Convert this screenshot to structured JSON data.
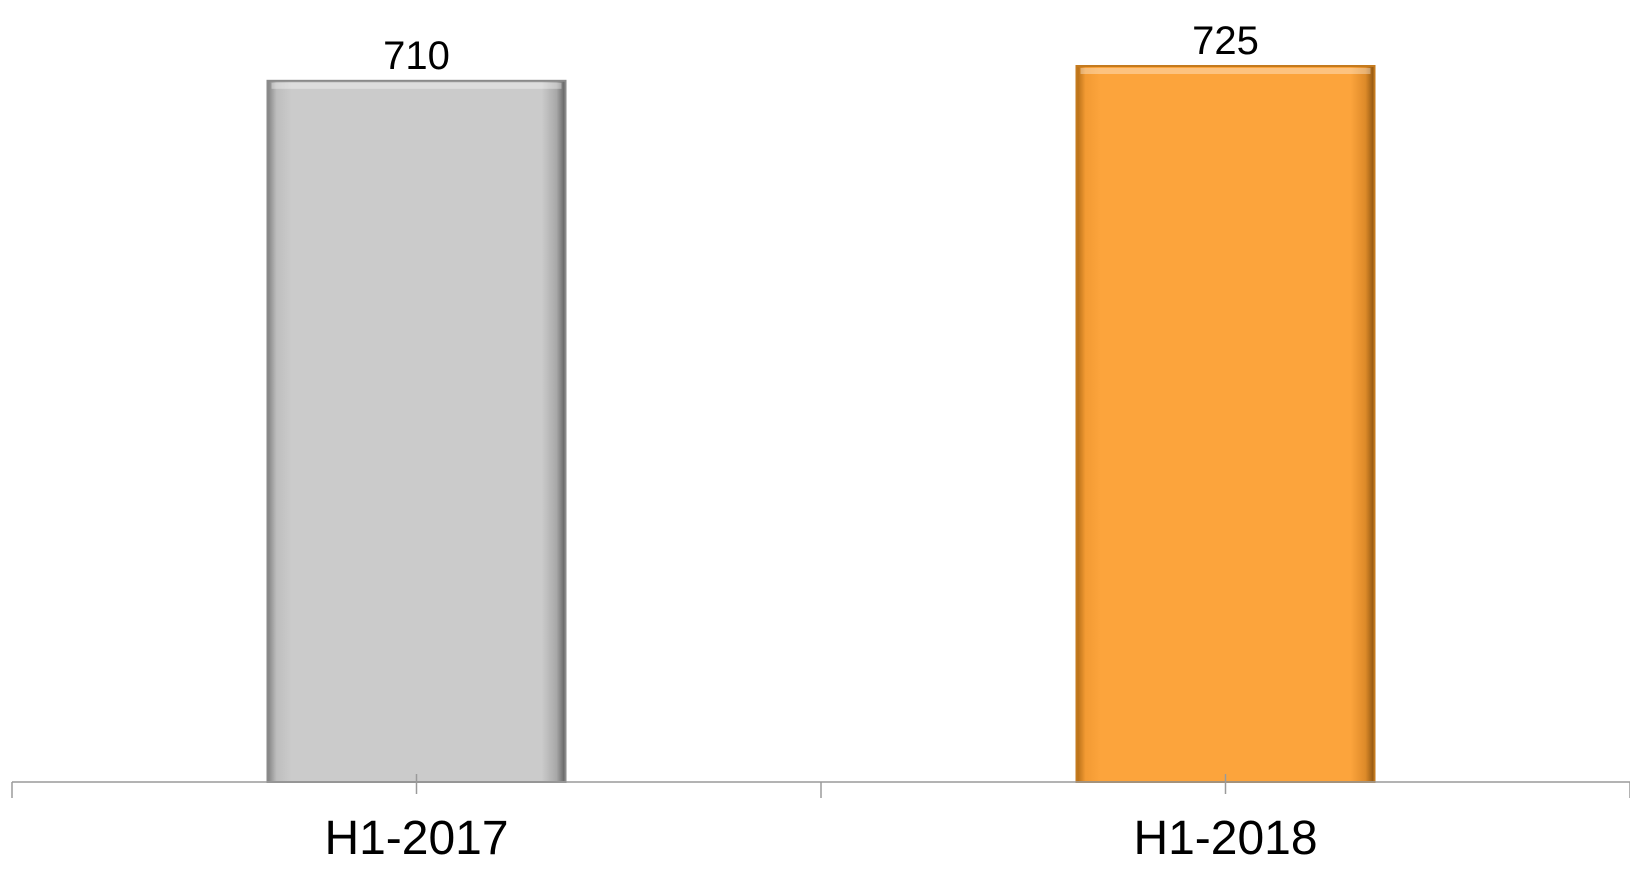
{
  "chart_data": {
    "type": "bar",
    "categories": [
      "H1-2017",
      "H1-2018"
    ],
    "values": [
      710,
      725
    ],
    "data_labels": [
      "710",
      "725"
    ],
    "bar_colors": [
      "#c9c9c9",
      "#fba23c"
    ],
    "bar_edge_colors": [
      "#8a8a8a",
      "#c47a1e"
    ],
    "axis_color": "#9a9a9a",
    "ylim": [
      0,
      725
    ],
    "grid": false,
    "legend": "none"
  }
}
